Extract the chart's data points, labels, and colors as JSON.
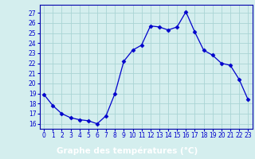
{
  "x": [
    0,
    1,
    2,
    3,
    4,
    5,
    6,
    7,
    8,
    9,
    10,
    11,
    12,
    13,
    14,
    15,
    16,
    17,
    18,
    19,
    20,
    21,
    22,
    23
  ],
  "y": [
    18.9,
    17.8,
    17.0,
    16.6,
    16.4,
    16.3,
    16.0,
    16.8,
    19.0,
    22.2,
    23.3,
    23.8,
    25.7,
    25.6,
    25.3,
    25.6,
    27.1,
    25.1,
    23.3,
    22.8,
    22.0,
    21.8,
    20.4,
    18.4
  ],
  "line_color": "#0000cc",
  "marker": "D",
  "marker_size": 2.5,
  "bg_color": "#d4eeee",
  "grid_color": "#aad4d4",
  "xlabel": "Graphe des températures (°C)",
  "xlabel_color": "#0000cc",
  "tick_color": "#0000cc",
  "ylim": [
    15.5,
    27.8
  ],
  "xlim": [
    -0.5,
    23.5
  ],
  "yticks": [
    16,
    17,
    18,
    19,
    20,
    21,
    22,
    23,
    24,
    25,
    26,
    27
  ],
  "xticks": [
    0,
    1,
    2,
    3,
    4,
    5,
    6,
    7,
    8,
    9,
    10,
    11,
    12,
    13,
    14,
    15,
    16,
    17,
    18,
    19,
    20,
    21,
    22,
    23
  ],
  "xtick_labels": [
    "0",
    "1",
    "2",
    "3",
    "4",
    "5",
    "6",
    "7",
    "8",
    "9",
    "10",
    "11",
    "12",
    "13",
    "14",
    "15",
    "16",
    "17",
    "18",
    "19",
    "20",
    "21",
    "22",
    "23"
  ],
  "tick_fontsize": 5.5,
  "xlabel_fontsize": 7.5,
  "bottom_bar_color": "#0000aa",
  "spine_color": "#0000aa"
}
